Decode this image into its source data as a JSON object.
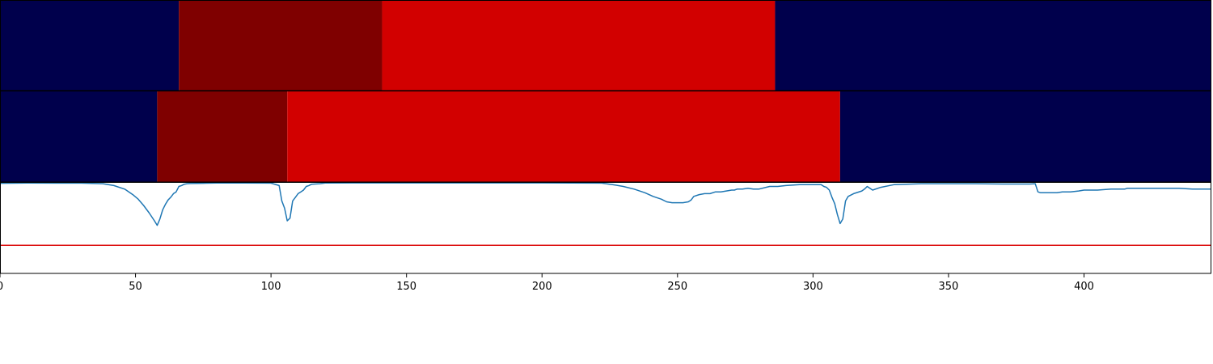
{
  "chart_data": [
    {
      "type": "heatmap",
      "panel": "top-band",
      "xlim": [
        0,
        447
      ],
      "segments": [
        {
          "start": 0,
          "end": 66,
          "color": "#00004c"
        },
        {
          "start": 66,
          "end": 141,
          "color": "#7f0000"
        },
        {
          "start": 141,
          "end": 286,
          "color": "#d20000"
        },
        {
          "start": 286,
          "end": 447,
          "color": "#00004c"
        }
      ]
    },
    {
      "type": "heatmap",
      "panel": "middle-band",
      "xlim": [
        0,
        447
      ],
      "segments": [
        {
          "start": 0,
          "end": 58,
          "color": "#00004c"
        },
        {
          "start": 58,
          "end": 106,
          "color": "#7f0000"
        },
        {
          "start": 106,
          "end": 310,
          "color": "#d20000"
        },
        {
          "start": 310,
          "end": 447,
          "color": "#00004c"
        }
      ]
    },
    {
      "type": "line",
      "panel": "signal",
      "xlim": [
        0,
        447
      ],
      "ylim": [
        0,
        1
      ],
      "grid": false,
      "x_ticks": [
        0,
        50,
        100,
        150,
        200,
        250,
        300,
        350,
        400
      ],
      "x_tick_labels": [
        "0",
        "50",
        "100",
        "150",
        "200",
        "250",
        "300",
        "350",
        "400"
      ],
      "threshold": {
        "value": 0.31,
        "color": "#dd1111"
      },
      "series": [
        {
          "color": "#1f77b4",
          "x": [
            0,
            10,
            20,
            30,
            38,
            42,
            46,
            49,
            51,
            53,
            55,
            57,
            58,
            59,
            60,
            61,
            62,
            63,
            64,
            65,
            66,
            67,
            68,
            69,
            70,
            75,
            80,
            90,
            100,
            103,
            104,
            105,
            106,
            107,
            108,
            109,
            110,
            111,
            112,
            113,
            114,
            115,
            118,
            120,
            130,
            150,
            180,
            200,
            222,
            226,
            230,
            234,
            238,
            241,
            244,
            246,
            248,
            250,
            252,
            254,
            255,
            256,
            258,
            260,
            262,
            264,
            266,
            268,
            270,
            271,
            272,
            274,
            276,
            278,
            280,
            284,
            287,
            290,
            295,
            297,
            300,
            303,
            304,
            305,
            306,
            307,
            308,
            309,
            310,
            311,
            312,
            313,
            315,
            318,
            319,
            320,
            322,
            325,
            330,
            340,
            360,
            370,
            380,
            382,
            383,
            384,
            386,
            390,
            392,
            395,
            398,
            400,
            405,
            410,
            415,
            416,
            420,
            425,
            430,
            435,
            440,
            447
          ],
          "y": [
            0.995,
            0.997,
            0.996,
            0.996,
            0.99,
            0.97,
            0.93,
            0.87,
            0.82,
            0.75,
            0.67,
            0.58,
            0.53,
            0.6,
            0.7,
            0.76,
            0.81,
            0.84,
            0.88,
            0.9,
            0.96,
            0.97,
            0.985,
            0.99,
            0.992,
            0.995,
            0.997,
            0.998,
            0.996,
            0.97,
            0.8,
            0.72,
            0.58,
            0.61,
            0.8,
            0.84,
            0.88,
            0.9,
            0.92,
            0.96,
            0.97,
            0.985,
            0.99,
            0.998,
            0.999,
            0.999,
            0.999,
            0.999,
            0.996,
            0.98,
            0.96,
            0.93,
            0.89,
            0.85,
            0.82,
            0.79,
            0.78,
            0.78,
            0.78,
            0.79,
            0.81,
            0.85,
            0.87,
            0.88,
            0.88,
            0.9,
            0.9,
            0.91,
            0.92,
            0.92,
            0.93,
            0.93,
            0.94,
            0.93,
            0.93,
            0.96,
            0.96,
            0.97,
            0.98,
            0.98,
            0.98,
            0.98,
            0.96,
            0.95,
            0.92,
            0.84,
            0.77,
            0.65,
            0.55,
            0.6,
            0.8,
            0.85,
            0.88,
            0.91,
            0.93,
            0.96,
            0.92,
            0.95,
            0.98,
            0.99,
            0.99,
            0.987,
            0.987,
            0.99,
            0.9,
            0.89,
            0.89,
            0.89,
            0.9,
            0.9,
            0.91,
            0.92,
            0.92,
            0.93,
            0.93,
            0.94,
            0.94,
            0.94,
            0.94,
            0.94,
            0.93,
            0.93
          ]
        }
      ]
    }
  ]
}
